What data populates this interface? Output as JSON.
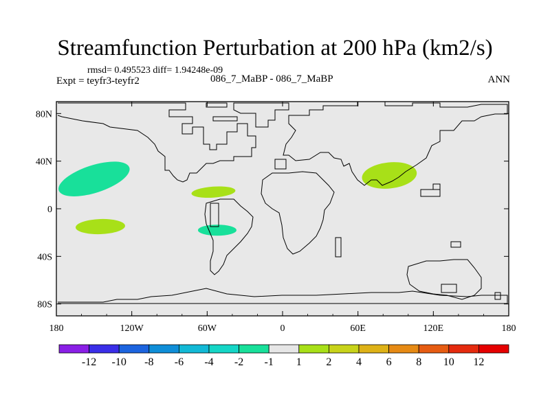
{
  "title": "Streamfunction Perturbation at 200 hPa (km2/s)",
  "stats": "rmsd= 0.495523 diff= 1.94248e-09",
  "experiment": "Expt = teyfr3-teyfr2",
  "case_label": "086_7_MaBP - 086_7_MaBP",
  "season": "ANN",
  "map": {
    "lon_range": [
      -180,
      180
    ],
    "lat_range": [
      -90,
      90
    ],
    "projection": "cylindrical equidistant",
    "background_fill": "#e8e8e8",
    "x_tick_labels": [
      "180",
      "120W",
      "60W",
      "0",
      "60E",
      "120E",
      "180"
    ],
    "y_tick_labels": [
      "80N",
      "40N",
      "0",
      "40S",
      "80S"
    ]
  },
  "chart_data": {
    "type": "contour_map",
    "variable": "Streamfunction Perturbation",
    "level": "200 hPa",
    "units": "km2/s",
    "colorbar": {
      "levels": [
        "-12",
        "-10",
        "-8",
        "-6",
        "-4",
        "-2",
        "-1",
        "1",
        "2",
        "4",
        "6",
        "8",
        "10",
        "12"
      ],
      "colors": [
        "#8a1fe6",
        "#3a2ee8",
        "#1c64df",
        "#0f8ed8",
        "#12b9d6",
        "#15d6c6",
        "#18e09a",
        "#e6e6e6",
        "#a8e018",
        "#c8d31a",
        "#deb217",
        "#e68a14",
        "#e65c12",
        "#e52b0e",
        "#e50000"
      ]
    },
    "anomalies": [
      {
        "region": "North Pacific",
        "center_lon": -150,
        "center_lat": 25,
        "bin": "-2 to -1",
        "color": "#18e09a"
      },
      {
        "region": "South Pacific",
        "center_lon": -145,
        "center_lat": -15,
        "bin": "1 to 2",
        "color": "#a8e018"
      },
      {
        "region": "Caribbean / tropical Atlantic",
        "center_lon": -55,
        "center_lat": 14,
        "bin": "1 to 2",
        "color": "#a8e018"
      },
      {
        "region": "South America",
        "center_lon": -52,
        "center_lat": -18,
        "bin": "-2 to -1",
        "color": "#18e09a"
      },
      {
        "region": "South Asia / Tibetan Plateau",
        "center_lon": 85,
        "center_lat": 28,
        "bin": "1 to 2",
        "color": "#a8e018"
      }
    ]
  }
}
